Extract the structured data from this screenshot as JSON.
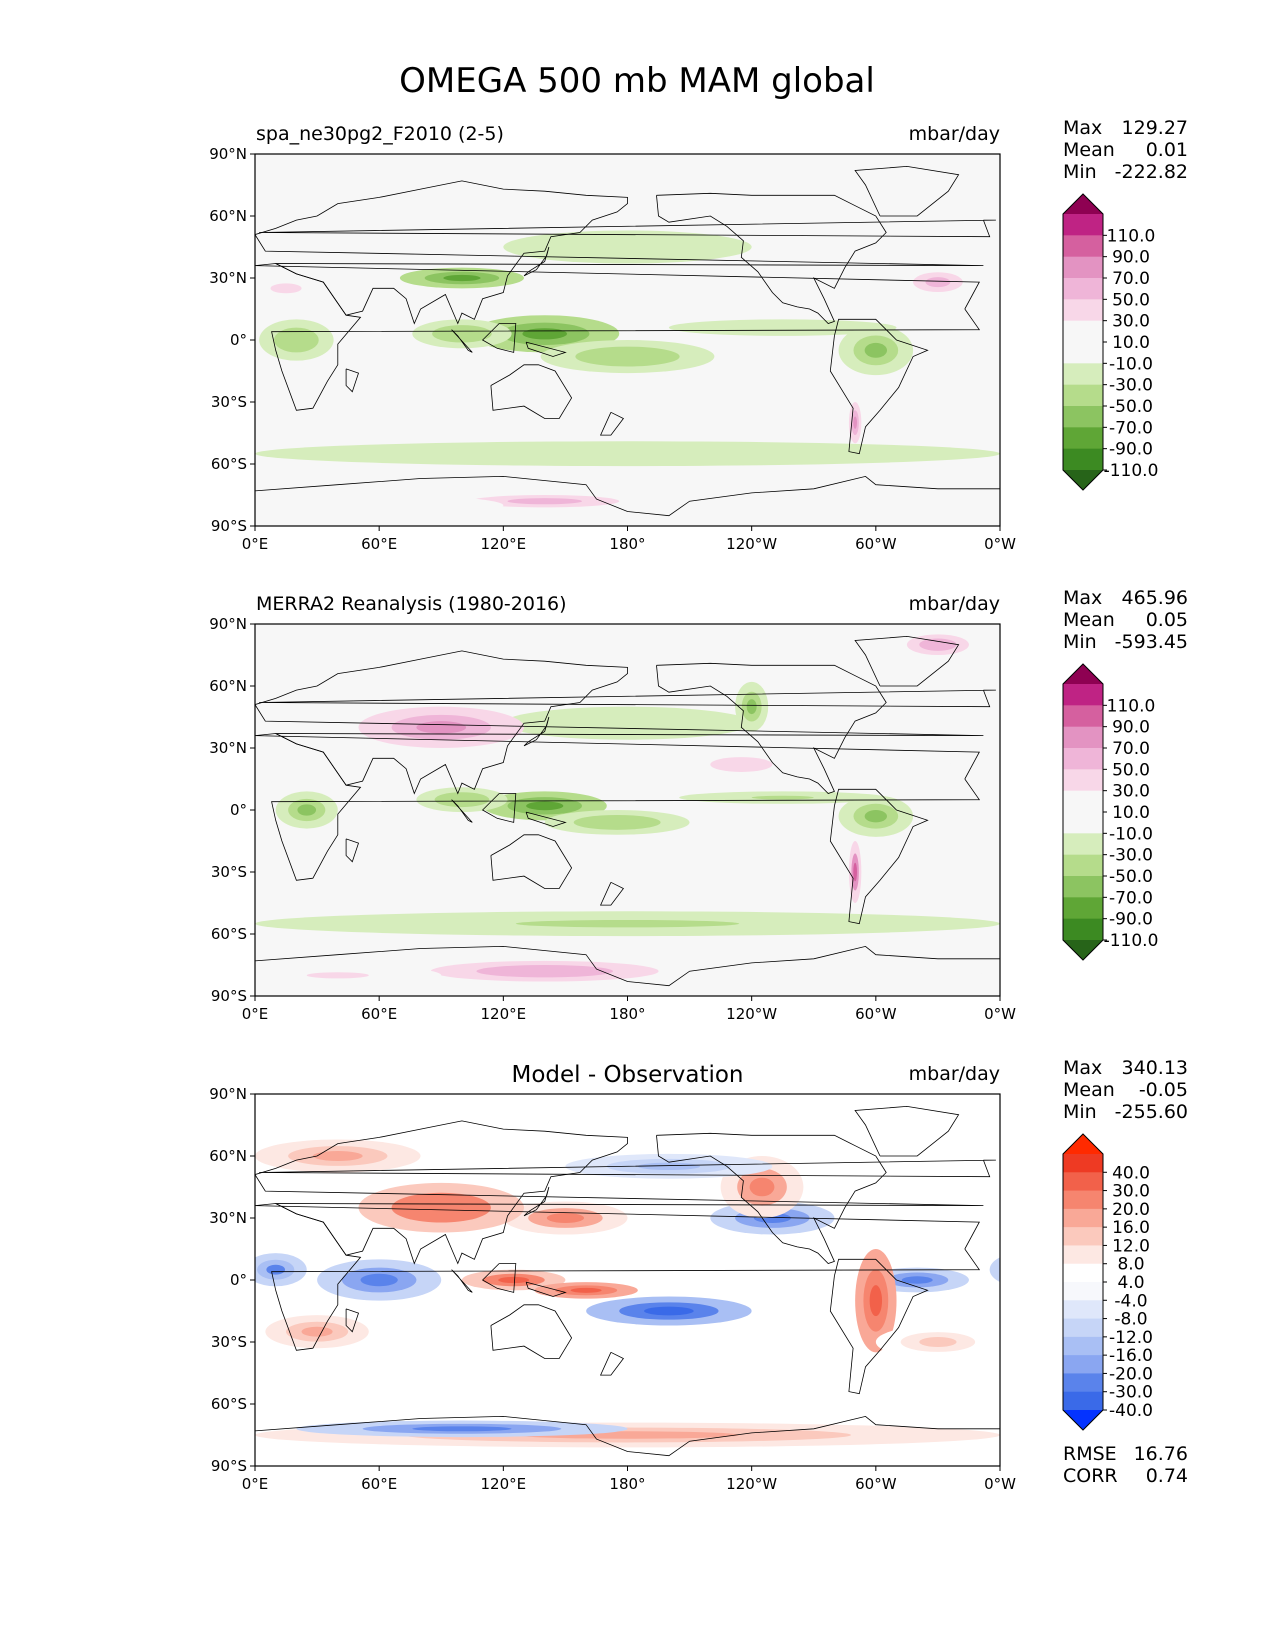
{
  "suptitle": "OMEGA 500 mb MAM global",
  "colors": {
    "pinkgreen": [
      "#276419",
      "#3c8a22",
      "#5fa636",
      "#8cc461",
      "#b5dc8b",
      "#d6edbc",
      "#f7f7f7",
      "#f7f7f7",
      "#f8d7e8",
      "#efb5d8",
      "#e393c2",
      "#d5609f",
      "#bf2384",
      "#8e0152"
    ],
    "bluered": [
      "#0433ff",
      "#3a6ae8",
      "#5a83eb",
      "#8aa6f1",
      "#a9bff4",
      "#c6d5f7",
      "#dfe7fa",
      "#f7f8fc",
      "#ffffff",
      "#fde8e3",
      "#fbc9bd",
      "#f9a897",
      "#f6856f",
      "#f2614a",
      "#ee3a23",
      "#ff2a00"
    ],
    "coast": "#000000",
    "land_tint": "#e8e8e8"
  },
  "panels": [
    {
      "left_title": "spa_ne30pg2_F2010 (2-5)",
      "center_title": "",
      "units": "mbar/day",
      "stats": [
        {
          "label": "Max",
          "value": "129.27"
        },
        {
          "label": "Mean",
          "value": "0.01"
        },
        {
          "label": "Min",
          "value": "-222.82"
        }
      ],
      "extra_stats": [],
      "cmap": "pinkgreen",
      "colorbar_labels": [
        "110.0",
        "90.0",
        "70.0",
        "50.0",
        "30.0",
        "10.0",
        "-10.0",
        "-30.0",
        "-50.0",
        "-70.0",
        "-90.0",
        "-110.0"
      ]
    },
    {
      "left_title": "MERRA2 Reanalysis (1980-2016)",
      "center_title": "",
      "units": "mbar/day",
      "stats": [
        {
          "label": "Max",
          "value": "465.96"
        },
        {
          "label": "Mean",
          "value": "0.05"
        },
        {
          "label": "Min",
          "value": "-593.45"
        }
      ],
      "extra_stats": [],
      "cmap": "pinkgreen",
      "colorbar_labels": [
        "110.0",
        "90.0",
        "70.0",
        "50.0",
        "30.0",
        "10.0",
        "-10.0",
        "-30.0",
        "-50.0",
        "-70.0",
        "-90.0",
        "-110.0"
      ]
    },
    {
      "left_title": "",
      "center_title": "Model - Observation",
      "units": "mbar/day",
      "stats": [
        {
          "label": "Max",
          "value": "340.13"
        },
        {
          "label": "Mean",
          "value": "-0.05"
        },
        {
          "label": "Min",
          "value": "-255.60"
        }
      ],
      "extra_stats": [
        {
          "label": "RMSE",
          "value": "16.76"
        },
        {
          "label": "CORR",
          "value": "0.74"
        }
      ],
      "cmap": "bluered",
      "colorbar_labels": [
        "40.0",
        "30.0",
        "20.0",
        "16.0",
        "12.0",
        "8.0",
        "4.0",
        "-4.0",
        "-8.0",
        "-12.0",
        "-16.0",
        "-20.0",
        "-30.0",
        "-40.0"
      ]
    }
  ],
  "axes": {
    "xticks": [
      "0°E",
      "60°E",
      "120°E",
      "180°",
      "120°W",
      "60°W",
      "0°W"
    ],
    "yticks": [
      "90°N",
      "60°N",
      "30°N",
      "0°",
      "30°S",
      "60°S",
      "90°S"
    ]
  },
  "chart_data": {
    "type": "heatmap",
    "title": "OMEGA 500 mb MAM global",
    "projection": "PlateCarree, central longitude 180",
    "xlim": [
      0,
      360
    ],
    "ylim": [
      -90,
      90
    ],
    "units": "mbar/day",
    "grid": false,
    "legend": "colorbar right of each panel",
    "panels": [
      {
        "name": "spa_ne30pg2_F2010 (2-5)",
        "max": 129.27,
        "mean": 0.01,
        "min": -222.82,
        "levels": [
          -110,
          -90,
          -70,
          -50,
          -30,
          -10,
          10,
          30,
          50,
          70,
          90,
          110
        ],
        "fields": [
          {
            "lon": 140,
            "lat": 3,
            "rlon": 36,
            "rlat": 9,
            "v": -70
          },
          {
            "lon": 180,
            "lat": -8,
            "rlon": 42,
            "rlat": 8,
            "v": -45
          },
          {
            "lon": 100,
            "lat": 3,
            "rlon": 24,
            "rlat": 7,
            "v": -40
          },
          {
            "lon": 300,
            "lat": -5,
            "rlon": 18,
            "rlat": 12,
            "v": -55
          },
          {
            "lon": 20,
            "lat": 0,
            "rlon": 18,
            "rlat": 10,
            "v": -45
          },
          {
            "lon": 255,
            "lat": 6,
            "rlon": 55,
            "rlat": 4,
            "v": -25
          },
          {
            "lon": 180,
            "lat": -55,
            "rlon": 180,
            "rlat": 6,
            "v": -25
          },
          {
            "lon": 180,
            "lat": 45,
            "rlon": 60,
            "rlat": 8,
            "v": -20
          },
          {
            "lon": 330,
            "lat": 28,
            "rlon": 20,
            "rlat": 8,
            "v": 60
          },
          {
            "lon": 230,
            "lat": 25,
            "rlon": 35,
            "rlat": 8,
            "v": 30
          },
          {
            "lon": 15,
            "lat": 25,
            "rlon": 25,
            "rlat": 8,
            "v": 35
          },
          {
            "lon": 70,
            "lat": -20,
            "rlon": 25,
            "rlat": 8,
            "v": 30
          },
          {
            "lon": 260,
            "lat": -25,
            "rlon": 35,
            "rlat": 10,
            "v": 25
          },
          {
            "lon": 140,
            "lat": -78,
            "rlon": 60,
            "rlat": 5,
            "v": 60
          },
          {
            "lon": 60,
            "lat": -80,
            "rlon": 60,
            "rlat": 5,
            "v": 30
          },
          {
            "lon": 100,
            "lat": 30,
            "rlon": 30,
            "rlat": 5,
            "v": -80
          },
          {
            "lon": 290,
            "lat": -40,
            "rlon": 3,
            "rlat": 10,
            "v": 90
          }
        ]
      },
      {
        "name": "MERRA2 Reanalysis (1980-2016)",
        "max": 465.96,
        "mean": 0.05,
        "min": -593.45,
        "levels": [
          -110,
          -90,
          -70,
          -50,
          -30,
          -10,
          10,
          30,
          50,
          70,
          90,
          110
        ],
        "fields": [
          {
            "lon": 140,
            "lat": 2,
            "rlon": 30,
            "rlat": 7,
            "v": -70
          },
          {
            "lon": 175,
            "lat": -6,
            "rlon": 35,
            "rlat": 6,
            "v": -45
          },
          {
            "lon": 100,
            "lat": 5,
            "rlon": 22,
            "rlat": 6,
            "v": -45
          },
          {
            "lon": 300,
            "lat": -3,
            "rlon": 18,
            "rlat": 10,
            "v": -60
          },
          {
            "lon": 25,
            "lat": 0,
            "rlon": 15,
            "rlat": 9,
            "v": -50
          },
          {
            "lon": 255,
            "lat": 6,
            "rlon": 50,
            "rlat": 3,
            "v": -30
          },
          {
            "lon": 180,
            "lat": -55,
            "rlon": 180,
            "rlat": 6,
            "v": -30
          },
          {
            "lon": 180,
            "lat": 42,
            "rlon": 60,
            "rlat": 8,
            "v": -25
          },
          {
            "lon": 90,
            "lat": 40,
            "rlon": 40,
            "rlat": 10,
            "v": 80
          },
          {
            "lon": 235,
            "lat": 22,
            "rlon": 25,
            "rlat": 6,
            "v": 45
          },
          {
            "lon": 330,
            "lat": 28,
            "rlon": 18,
            "rlat": 6,
            "v": 30
          },
          {
            "lon": 330,
            "lat": 80,
            "rlon": 15,
            "rlat": 5,
            "v": 70
          },
          {
            "lon": 210,
            "lat": -28,
            "rlon": 40,
            "rlat": 10,
            "v": 30
          },
          {
            "lon": 140,
            "lat": -78,
            "rlon": 55,
            "rlat": 5,
            "v": 70
          },
          {
            "lon": 40,
            "lat": -80,
            "rlon": 50,
            "rlat": 5,
            "v": 40
          },
          {
            "lon": 290,
            "lat": -30,
            "rlon": 3,
            "rlat": 15,
            "v": 110
          },
          {
            "lon": 240,
            "lat": 50,
            "rlon": 8,
            "rlat": 12,
            "v": -60
          }
        ]
      },
      {
        "name": "Model - Observation",
        "max": 340.13,
        "mean": -0.05,
        "min": -255.6,
        "rmse": 16.76,
        "corr": 0.74,
        "levels": [
          -40,
          -30,
          -20,
          -16,
          -12,
          -8,
          -4,
          4,
          8,
          12,
          16,
          20,
          30,
          40
        ],
        "fields": [
          {
            "lon": 125,
            "lat": 0,
            "rlon": 25,
            "rlat": 5,
            "v": 35
          },
          {
            "lon": 160,
            "lat": -5,
            "rlon": 25,
            "rlat": 4,
            "v": 40
          },
          {
            "lon": 200,
            "lat": -15,
            "rlon": 40,
            "rlat": 7,
            "v": -30
          },
          {
            "lon": 60,
            "lat": 0,
            "rlon": 30,
            "rlat": 10,
            "v": -25
          },
          {
            "lon": 10,
            "lat": 5,
            "rlon": 15,
            "rlat": 8,
            "v": -20
          },
          {
            "lon": 320,
            "lat": 0,
            "rlon": 25,
            "rlat": 6,
            "v": -25
          },
          {
            "lon": 250,
            "lat": 30,
            "rlon": 30,
            "rlat": 8,
            "v": -25
          },
          {
            "lon": 150,
            "lat": 30,
            "rlon": 30,
            "rlat": 8,
            "v": 25
          },
          {
            "lon": 90,
            "lat": 35,
            "rlon": 40,
            "rlat": 12,
            "v": 30
          },
          {
            "lon": 245,
            "lat": 45,
            "rlon": 20,
            "rlat": 15,
            "v": 25
          },
          {
            "lon": 300,
            "lat": -10,
            "rlon": 10,
            "rlat": 25,
            "v": 40
          },
          {
            "lon": 180,
            "lat": -75,
            "rlon": 180,
            "rlat": 6,
            "v": 20
          },
          {
            "lon": 100,
            "lat": -72,
            "rlon": 80,
            "rlat": 4,
            "v": -25
          },
          {
            "lon": 30,
            "lat": -25,
            "rlon": 25,
            "rlat": 8,
            "v": 20
          },
          {
            "lon": 330,
            "lat": -30,
            "rlon": 30,
            "rlat": 8,
            "v": 15
          },
          {
            "lon": 200,
            "lat": 55,
            "rlon": 50,
            "rlat": 6,
            "v": -12
          },
          {
            "lon": 40,
            "lat": 60,
            "rlon": 40,
            "rlat": 8,
            "v": 20
          }
        ]
      }
    ]
  }
}
